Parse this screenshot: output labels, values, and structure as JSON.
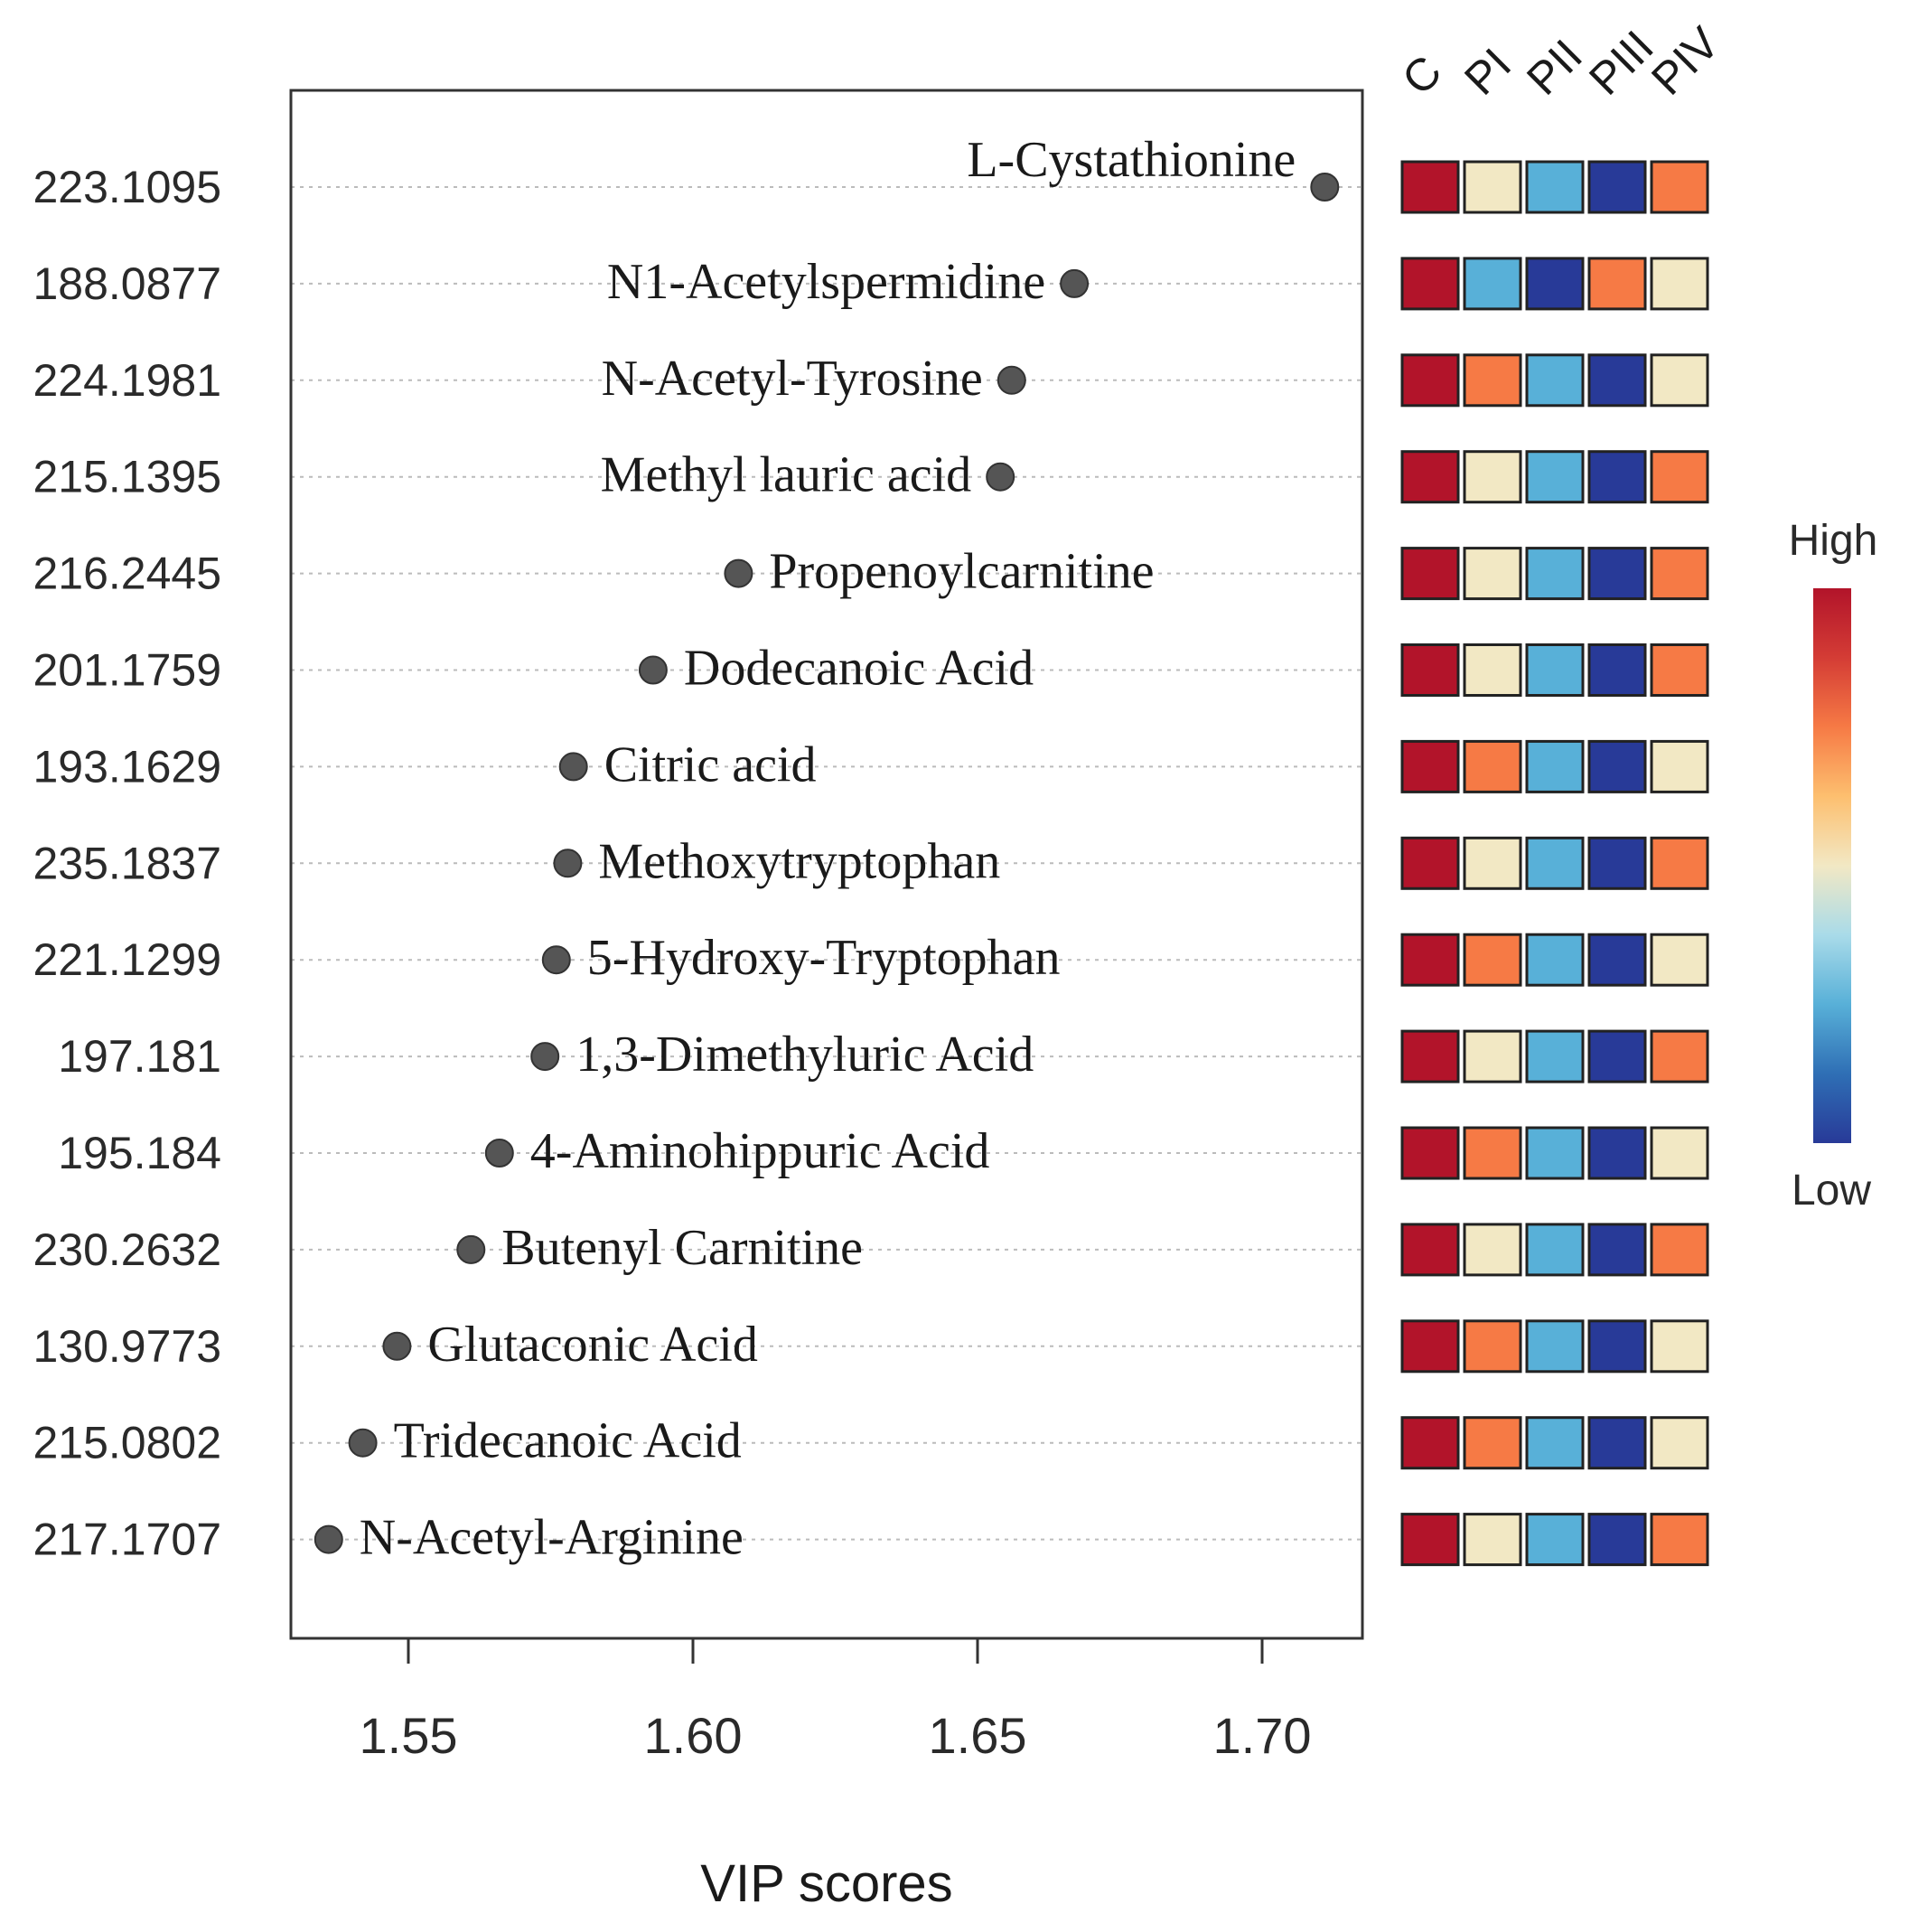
{
  "chart_data": {
    "type": "scatter",
    "xlabel": "VIP scores",
    "xlim": [
      1.53,
      1.72
    ],
    "xticks": [
      "1.55",
      "1.60",
      "1.65",
      "1.70"
    ],
    "groups": [
      "C",
      "PI",
      "PII",
      "PIII",
      "PIV"
    ],
    "legend": {
      "high": "High",
      "low": "Low",
      "placement": "right"
    },
    "colors": {
      "point": "#555555",
      "levels": [
        "#b2142a",
        "#f67a45",
        "#f2e8c4",
        "#58b0d8",
        "#283a98"
      ],
      "gradient": [
        "#b2142a",
        "#d43c35",
        "#f67a45",
        "#fdbf6f",
        "#f2e8c4",
        "#a9dbe9",
        "#58b0d8",
        "#2f6fb5",
        "#283a98"
      ]
    },
    "rows": [
      {
        "mz": "223.1095",
        "name": "L-Cystathionine",
        "vip": 1.711,
        "heat": [
          0,
          2,
          3,
          4,
          1
        ]
      },
      {
        "mz": "188.0877",
        "name": "N1-Acetylspermidine",
        "vip": 1.667,
        "heat": [
          0,
          3,
          4,
          1,
          2
        ]
      },
      {
        "mz": "224.1981",
        "name": "N-Acetyl-Tyrosine",
        "vip": 1.656,
        "heat": [
          0,
          1,
          3,
          4,
          2
        ]
      },
      {
        "mz": "215.1395",
        "name": "Methyl lauric acid",
        "vip": 1.654,
        "heat": [
          0,
          2,
          3,
          4,
          1
        ]
      },
      {
        "mz": "216.2445",
        "name": "Propenoylcarnitine",
        "vip": 1.608,
        "heat": [
          0,
          2,
          3,
          4,
          1
        ]
      },
      {
        "mz": "201.1759",
        "name": "Dodecanoic Acid",
        "vip": 1.593,
        "heat": [
          0,
          2,
          3,
          4,
          1
        ]
      },
      {
        "mz": "193.1629",
        "name": "Citric acid",
        "vip": 1.579,
        "heat": [
          0,
          1,
          3,
          4,
          2
        ]
      },
      {
        "mz": "235.1837",
        "name": "Methoxytryptophan",
        "vip": 1.578,
        "heat": [
          0,
          2,
          3,
          4,
          1
        ]
      },
      {
        "mz": "221.1299",
        "name": "5-Hydroxy-Tryptophan",
        "vip": 1.576,
        "heat": [
          0,
          1,
          3,
          4,
          2
        ]
      },
      {
        "mz": "197.181",
        "name": "1,3-Dimethyluric Acid",
        "vip": 1.574,
        "heat": [
          0,
          2,
          3,
          4,
          1
        ]
      },
      {
        "mz": "195.184",
        "name": "4-Aminohippuric Acid",
        "vip": 1.566,
        "heat": [
          0,
          1,
          3,
          4,
          2
        ]
      },
      {
        "mz": "230.2632",
        "name": "Butenyl Carnitine",
        "vip": 1.561,
        "heat": [
          0,
          2,
          3,
          4,
          1
        ]
      },
      {
        "mz": "130.9773",
        "name": "Glutaconic Acid",
        "vip": 1.548,
        "heat": [
          0,
          1,
          3,
          4,
          2
        ]
      },
      {
        "mz": "215.0802",
        "name": "Tridecanoic Acid",
        "vip": 1.542,
        "heat": [
          0,
          1,
          3,
          4,
          2
        ]
      },
      {
        "mz": "217.1707",
        "name": "N-Acetyl-Arginine",
        "vip": 1.536,
        "heat": [
          0,
          2,
          3,
          4,
          1
        ]
      }
    ]
  }
}
